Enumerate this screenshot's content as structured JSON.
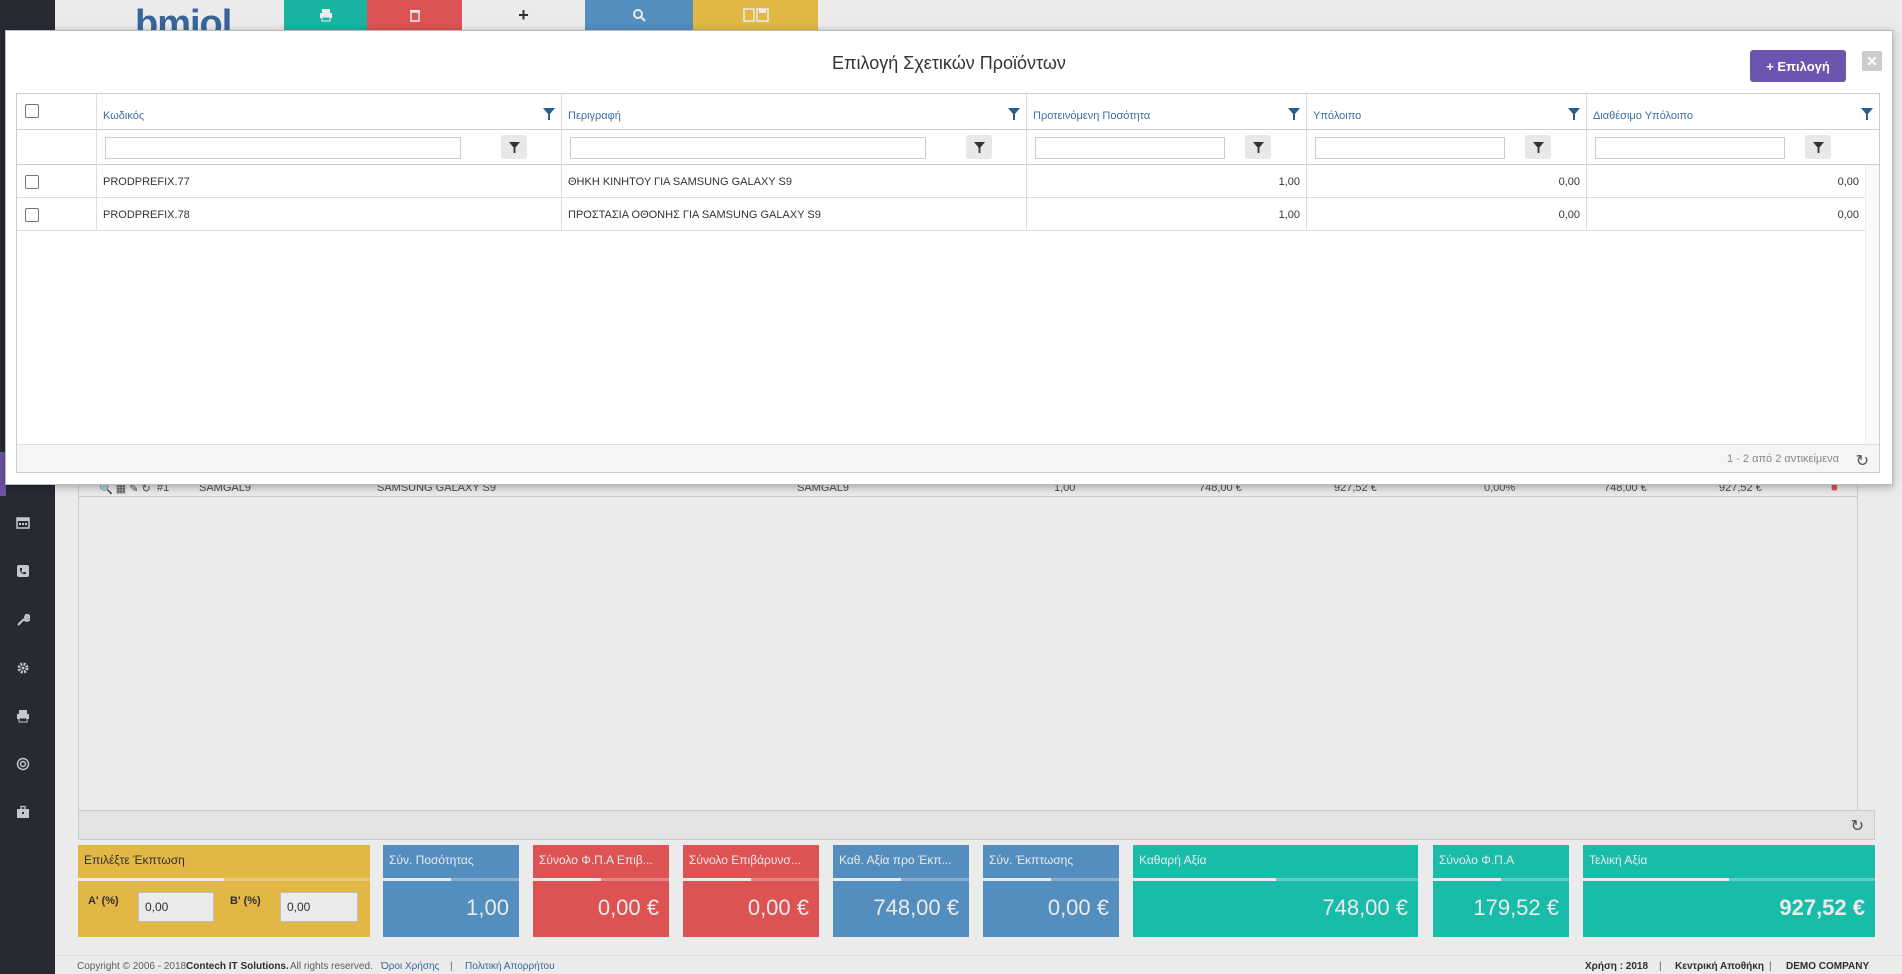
{
  "topbar": {
    "logo_text": "bmiol",
    "buttons": [
      {
        "name": "print-button",
        "icon": "print-icon",
        "color": "#1cc4b0"
      },
      {
        "name": "delete-button",
        "icon": "trash-icon",
        "color": "#f05a5a"
      },
      {
        "name": "add-button",
        "icon": "plus-icon",
        "color": "#ffffff"
      },
      {
        "name": "search-button",
        "icon": "search-icon",
        "color": "#5b9bd0"
      },
      {
        "name": "save-button",
        "icon": "save-icon",
        "color": "#f5c84c"
      }
    ]
  },
  "sidebar_icons": [
    "calendar-icon",
    "phone-icon",
    "wrench-icon",
    "gear-icon",
    "print-icon",
    "globe-icon",
    "briefcase-icon"
  ],
  "background_grid": {
    "row": {
      "line": "#1",
      "code": "SAMGAL9",
      "description": "SAMSUNG GALAXY S9",
      "code2": "SAMGAL9",
      "qty": "1,00",
      "price": "748,00 €",
      "total": "927,52 €",
      "discount": "0,00%",
      "net": "748,00 €",
      "final": "927,52 €"
    }
  },
  "totals": {
    "discount": {
      "label": "Επιλέξτε Έκπτωση",
      "a_label": "Α' (%)",
      "a_value": "0,00",
      "b_label": "Β' (%)",
      "b_value": "0,00"
    },
    "cards": [
      {
        "label": "Σύν. Ποσότητας",
        "value": "1,00",
        "color": "#5b9bd0"
      },
      {
        "label": "Σύνολο Φ.Π.Α Επιβ...",
        "value": "0,00 €",
        "color": "#f05a5a"
      },
      {
        "label": "Σύνολο Επιβάρυνσ...",
        "value": "0,00 €",
        "color": "#f05a5a"
      },
      {
        "label": "Καθ. Αξία προ Έκπ...",
        "value": "748,00 €",
        "color": "#5b9bd0"
      },
      {
        "label": "Σύν. Έκπτωσης",
        "value": "0,00 €",
        "color": "#5b9bd0"
      },
      {
        "label": "Καθαρή Αξία",
        "value": "748,00 €",
        "color": "#1ccdb8"
      },
      {
        "label": "Σύνολο Φ.Π.Α",
        "value": "179,52 €",
        "color": "#1ccdb8"
      },
      {
        "label": "Τελική Αξία",
        "value": "927,52 €",
        "color": "#1ccdb8"
      }
    ]
  },
  "footer": {
    "copyright": "Copyright © 2006 - 2018",
    "company": "Contech IT Solutions.",
    "rights": "All rights reserved.",
    "terms": "Όροι Χρήσης",
    "privacy": "Πολιτική Απορρήτου",
    "year": "Χρήση : 2018",
    "warehouse": "Κεντρική Αποθήκη",
    "demo": "DEMO COMPANY"
  },
  "modal": {
    "title": "Επιλογή Σχετικών Προϊόντων",
    "select_label": "+ Επιλογή",
    "columns": [
      "Κωδικός",
      "Περιγραφή",
      "Προτεινόμενη Ποσότητα",
      "Υπόλοιπο",
      "Διαθέσιμο Υπόλοιπο"
    ],
    "rows": [
      {
        "code": "PRODPREFIX.77",
        "description": "ΘΗΚΗ ΚΙΝΗΤΟΥ ΓΙΑ SAMSUNG GALAXY S9",
        "qty": "1,00",
        "balance": "0,00",
        "available": "0,00"
      },
      {
        "code": "PRODPREFIX.78",
        "description": "ΠΡΟΣΤΑΣΙΑ ΟΘΟΝΗΣ ΓΙΑ SAMSUNG GALAXY S9",
        "qty": "1,00",
        "balance": "0,00",
        "available": "0,00"
      }
    ],
    "pager": "1 - 2 από 2 αντικείμενα"
  }
}
